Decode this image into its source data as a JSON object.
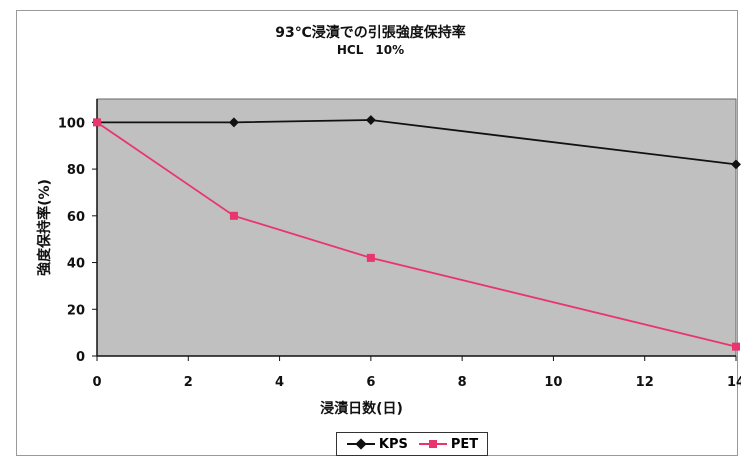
{
  "chart_data": {
    "type": "line",
    "title": "93℃浸漬での引張強度保持率",
    "subtitle": "HCL　10%",
    "xlabel": "浸漬日数(日)",
    "ylabel": "強度保持率(%)",
    "xlim": [
      0,
      14
    ],
    "ylim": [
      0,
      110
    ],
    "xticks": [
      0,
      2,
      4,
      6,
      8,
      10,
      12,
      14
    ],
    "yticks": [
      0,
      20,
      40,
      60,
      80,
      100
    ],
    "grid": false,
    "plot_background": "#c0c0c0",
    "legend_position": "bottom",
    "series": [
      {
        "name": "KPS",
        "color": "#111111",
        "marker": "diamond",
        "x": [
          0,
          3,
          6,
          14
        ],
        "y": [
          100,
          100,
          101,
          82
        ]
      },
      {
        "name": "PET",
        "color": "#e8356e",
        "marker": "square",
        "x": [
          0,
          3,
          6,
          14
        ],
        "y": [
          100,
          60,
          42,
          4
        ]
      }
    ]
  }
}
